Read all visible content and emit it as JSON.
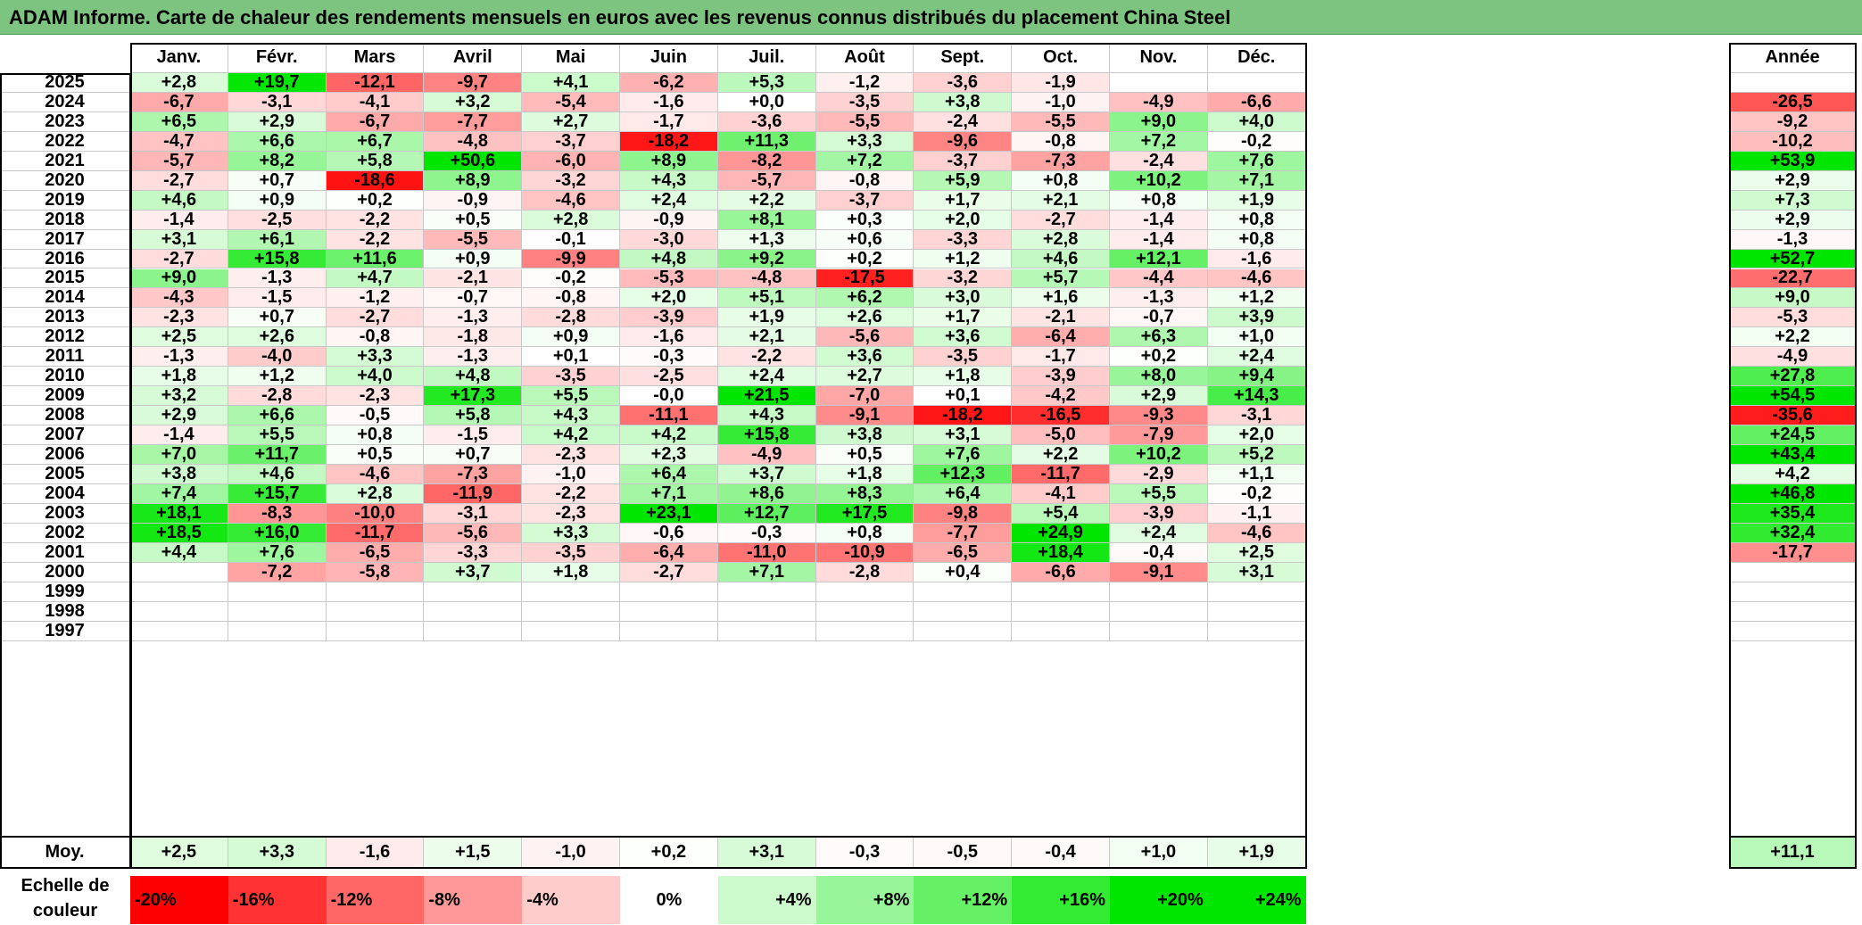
{
  "title": "ADAM Informe. Carte de chaleur des rendements mensuels en euros avec les revenus connus distribués du placement China Steel",
  "colors": {
    "title_bar": "#7cc47f",
    "negative_max": "#ff0000",
    "neutral": "#ffffff",
    "positive_max": "#00e600"
  },
  "chart_data": {
    "type": "heatmap",
    "title": "ADAM Informe. Carte de chaleur des rendements mensuels en euros avec les revenus connus distribués du placement China Steel",
    "months": [
      "Janv.",
      "Févr.",
      "Mars",
      "Avril",
      "Mai",
      "Juin",
      "Juil.",
      "Août",
      "Sept.",
      "Oct.",
      "Nov.",
      "Déc."
    ],
    "year_header": "Année",
    "rows": [
      {
        "year": "2025",
        "values": [
          "+2,8",
          "+19,7",
          "-12,1",
          "-9,7",
          "+4,1",
          "-6,2",
          "+5,3",
          "-1,2",
          "-3,6",
          "-1,9",
          "",
          ""
        ],
        "annual": ""
      },
      {
        "year": "2024",
        "values": [
          "-6,7",
          "-3,1",
          "-4,1",
          "+3,2",
          "-5,4",
          "-1,6",
          "+0,0",
          "-3,5",
          "+3,8",
          "-1,0",
          "-4,9",
          "-6,6"
        ],
        "annual": "-26,5"
      },
      {
        "year": "2023",
        "values": [
          "+6,5",
          "+2,9",
          "-6,7",
          "-7,7",
          "+2,7",
          "-1,7",
          "-3,6",
          "-5,5",
          "-2,4",
          "-5,5",
          "+9,0",
          "+4,0"
        ],
        "annual": "-9,2"
      },
      {
        "year": "2022",
        "values": [
          "-4,7",
          "+6,6",
          "+6,7",
          "-4,8",
          "-3,7",
          "-18,2",
          "+11,3",
          "+3,3",
          "-9,6",
          "-0,8",
          "+7,2",
          "-0,2"
        ],
        "annual": "-10,2"
      },
      {
        "year": "2021",
        "values": [
          "-5,7",
          "+8,2",
          "+5,8",
          "+50,6",
          "-6,0",
          "+8,9",
          "-8,2",
          "+7,2",
          "-3,7",
          "-7,3",
          "-2,4",
          "+7,6"
        ],
        "annual": "+53,9"
      },
      {
        "year": "2020",
        "values": [
          "-2,7",
          "+0,7",
          "-18,6",
          "+8,9",
          "-3,2",
          "+4,3",
          "-5,7",
          "-0,8",
          "+5,9",
          "+0,8",
          "+10,2",
          "+7,1"
        ],
        "annual": "+2,9"
      },
      {
        "year": "2019",
        "values": [
          "+4,6",
          "+0,9",
          "+0,2",
          "-0,9",
          "-4,6",
          "+2,4",
          "+2,2",
          "-3,7",
          "+1,7",
          "+2,1",
          "+0,8",
          "+1,9"
        ],
        "annual": "+7,3"
      },
      {
        "year": "2018",
        "values": [
          "-1,4",
          "-2,5",
          "-2,2",
          "+0,5",
          "+2,8",
          "-0,9",
          "+8,1",
          "+0,3",
          "+2,0",
          "-2,7",
          "-1,4",
          "+0,8"
        ],
        "annual": "+2,9"
      },
      {
        "year": "2017",
        "values": [
          "+3,1",
          "+6,1",
          "-2,2",
          "-5,5",
          "-0,1",
          "-3,0",
          "+1,3",
          "+0,6",
          "-3,3",
          "+2,8",
          "-1,4",
          "+0,8"
        ],
        "annual": "-1,3"
      },
      {
        "year": "2016",
        "values": [
          "-2,7",
          "+15,8",
          "+11,6",
          "+0,9",
          "-9,9",
          "+4,8",
          "+9,2",
          "+0,2",
          "+1,2",
          "+4,6",
          "+12,1",
          "-1,6"
        ],
        "annual": "+52,7"
      },
      {
        "year": "2015",
        "values": [
          "+9,0",
          "-1,3",
          "+4,7",
          "-2,1",
          "-0,2",
          "-5,3",
          "-4,8",
          "-17,5",
          "-3,2",
          "+5,7",
          "-4,4",
          "-4,6"
        ],
        "annual": "-22,7"
      },
      {
        "year": "2014",
        "values": [
          "-4,3",
          "-1,5",
          "-1,2",
          "-0,7",
          "-0,8",
          "+2,0",
          "+5,1",
          "+6,2",
          "+3,0",
          "+1,6",
          "-1,3",
          "+1,2"
        ],
        "annual": "+9,0"
      },
      {
        "year": "2013",
        "values": [
          "-2,3",
          "+0,7",
          "-2,7",
          "-1,3",
          "-2,8",
          "-3,9",
          "+1,9",
          "+2,6",
          "+1,7",
          "-2,1",
          "-0,7",
          "+3,9"
        ],
        "annual": "-5,3"
      },
      {
        "year": "2012",
        "values": [
          "+2,5",
          "+2,6",
          "-0,8",
          "-1,8",
          "+0,9",
          "-1,6",
          "+2,1",
          "-5,6",
          "+3,6",
          "-6,4",
          "+6,3",
          "+1,0"
        ],
        "annual": "+2,2"
      },
      {
        "year": "2011",
        "values": [
          "-1,3",
          "-4,0",
          "+3,3",
          "-1,3",
          "+0,1",
          "-0,3",
          "-2,2",
          "+3,6",
          "-3,5",
          "-1,7",
          "+0,2",
          "+2,4"
        ],
        "annual": "-4,9"
      },
      {
        "year": "2010",
        "values": [
          "+1,8",
          "+1,2",
          "+4,0",
          "+4,8",
          "-3,5",
          "-2,5",
          "+2,4",
          "+2,7",
          "+1,8",
          "-3,9",
          "+8,0",
          "+9,4"
        ],
        "annual": "+27,8"
      },
      {
        "year": "2009",
        "values": [
          "+3,2",
          "-2,8",
          "-2,3",
          "+17,3",
          "+5,5",
          "-0,0",
          "+21,5",
          "-7,0",
          "+0,1",
          "-4,2",
          "+2,9",
          "+14,3"
        ],
        "annual": "+54,5"
      },
      {
        "year": "2008",
        "values": [
          "+2,9",
          "+6,6",
          "-0,5",
          "+5,8",
          "+4,3",
          "-11,1",
          "+4,3",
          "-9,1",
          "-18,2",
          "-16,5",
          "-9,3",
          "-3,1"
        ],
        "annual": "-35,6"
      },
      {
        "year": "2007",
        "values": [
          "-1,4",
          "+5,5",
          "+0,8",
          "-1,5",
          "+4,2",
          "+4,2",
          "+15,8",
          "+3,8",
          "+3,1",
          "-5,0",
          "-7,9",
          "+2,0"
        ],
        "annual": "+24,5"
      },
      {
        "year": "2006",
        "values": [
          "+7,0",
          "+11,7",
          "+0,5",
          "+0,7",
          "-2,3",
          "+2,3",
          "-4,9",
          "+0,5",
          "+7,6",
          "+2,2",
          "+10,2",
          "+5,2"
        ],
        "annual": "+43,4"
      },
      {
        "year": "2005",
        "values": [
          "+3,8",
          "+4,6",
          "-4,6",
          "-7,3",
          "-1,0",
          "+6,4",
          "+3,7",
          "+1,8",
          "+12,3",
          "-11,7",
          "-2,9",
          "+1,1"
        ],
        "annual": "+4,2"
      },
      {
        "year": "2004",
        "values": [
          "+7,4",
          "+15,7",
          "+2,8",
          "-11,9",
          "-2,2",
          "+7,1",
          "+8,6",
          "+8,3",
          "+6,4",
          "-4,1",
          "+5,5",
          "-0,2"
        ],
        "annual": "+46,8"
      },
      {
        "year": "2003",
        "values": [
          "+18,1",
          "-8,3",
          "-10,0",
          "-3,1",
          "-2,3",
          "+23,1",
          "+12,7",
          "+17,5",
          "-9,8",
          "+5,4",
          "-3,9",
          "-1,1"
        ],
        "annual": "+35,4"
      },
      {
        "year": "2002",
        "values": [
          "+18,5",
          "+16,0",
          "-11,7",
          "-5,6",
          "+3,3",
          "-0,6",
          "-0,3",
          "+0,8",
          "-7,7",
          "+24,9",
          "+2,4",
          "-4,6"
        ],
        "annual": "+32,4"
      },
      {
        "year": "2001",
        "values": [
          "+4,4",
          "+7,6",
          "-6,5",
          "-3,3",
          "-3,5",
          "-6,4",
          "-11,0",
          "-10,9",
          "-6,5",
          "+18,4",
          "-0,4",
          "+2,5"
        ],
        "annual": "-17,7"
      },
      {
        "year": "2000",
        "values": [
          "",
          "-7,2",
          "-5,8",
          "+3,7",
          "+1,8",
          "-2,7",
          "+7,1",
          "-2,8",
          "+0,4",
          "-6,6",
          "-9,1",
          "+3,1"
        ],
        "annual": ""
      },
      {
        "year": "1999",
        "values": [
          "",
          "",
          "",
          "",
          "",
          "",
          "",
          "",
          "",
          "",
          "",
          ""
        ],
        "annual": ""
      },
      {
        "year": "1998",
        "values": [
          "",
          "",
          "",
          "",
          "",
          "",
          "",
          "",
          "",
          "",
          "",
          ""
        ],
        "annual": ""
      },
      {
        "year": "1997",
        "values": [
          "",
          "",
          "",
          "",
          "",
          "",
          "",
          "",
          "",
          "",
          "",
          ""
        ],
        "annual": ""
      }
    ],
    "average": {
      "label": "Moy.",
      "values": [
        "+2,5",
        "+3,3",
        "-1,6",
        "+1,5",
        "-1,0",
        "+0,2",
        "+3,1",
        "-0,3",
        "-0,5",
        "-0,4",
        "+1,0",
        "+1,9"
      ],
      "annual": "+11,1"
    },
    "scale": {
      "label": "Echelle de couleur",
      "items": [
        {
          "text": "-20%",
          "value": -20
        },
        {
          "text": "-16%",
          "value": -16
        },
        {
          "text": "-12%",
          "value": -12
        },
        {
          "text": "-8%",
          "value": -8
        },
        {
          "text": "-4%",
          "value": -4
        },
        {
          "text": "0%",
          "value": 0
        },
        {
          "text": "+4%",
          "value": 4
        },
        {
          "text": "+8%",
          "value": 8
        },
        {
          "text": "+12%",
          "value": 12
        },
        {
          "text": "+16%",
          "value": 16
        },
        {
          "text": "+20%",
          "value": 20
        },
        {
          "text": "+24%",
          "value": 24
        }
      ]
    }
  }
}
